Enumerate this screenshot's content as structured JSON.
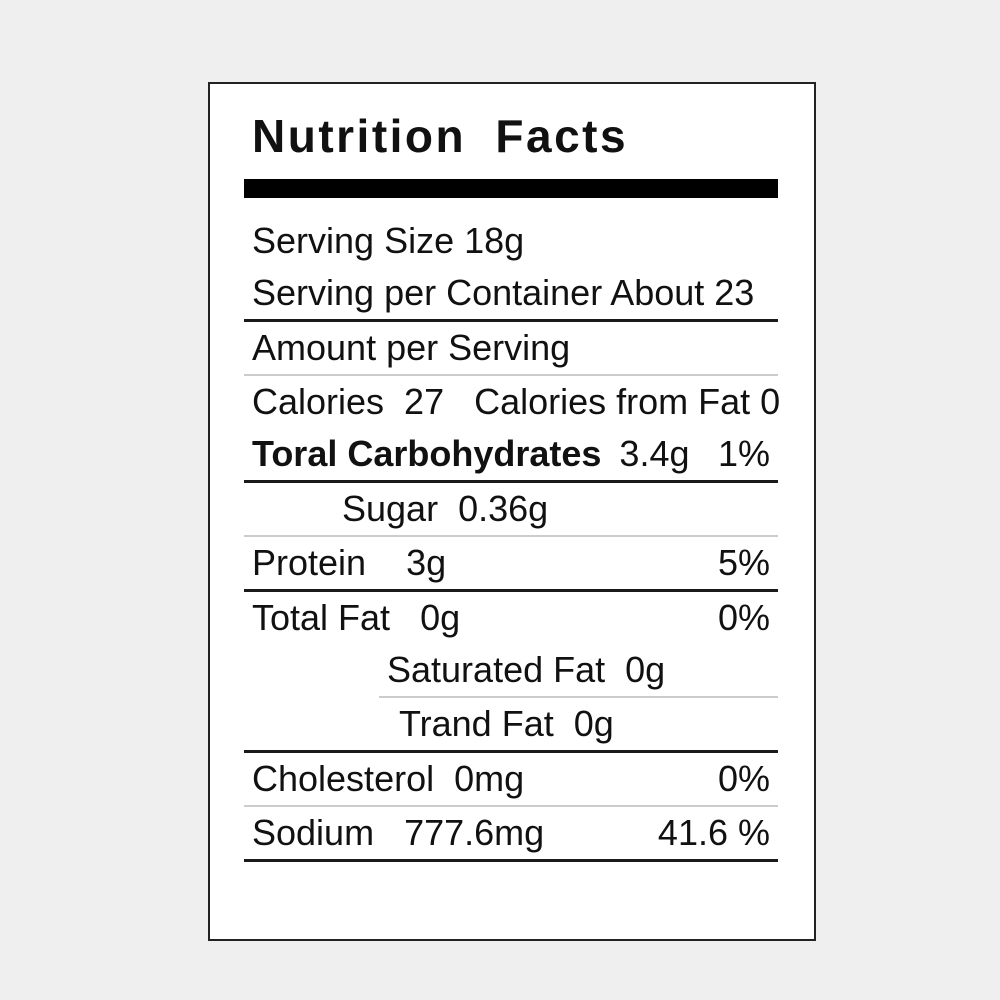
{
  "label": {
    "title": "Nutrition Facts",
    "rows": [
      {
        "name": "serving-size",
        "label": "Serving Size 18g"
      },
      {
        "name": "serving-per-container",
        "label": "Serving per Container About 23"
      },
      {
        "name": "amount-per-serving",
        "label": "Amount per Serving"
      },
      {
        "name": "calories",
        "label": "Calories  27   Calories from Fat 0"
      },
      {
        "name": "total-carbohydrates",
        "label": "Toral Carbohydrates",
        "value": "3.4g",
        "percent": "1%"
      },
      {
        "name": "sugar",
        "label": "Sugar  0.36g"
      },
      {
        "name": "protein",
        "label": "Protein    3g",
        "percent": "5%"
      },
      {
        "name": "total-fat",
        "label": "Total Fat   0g",
        "percent": "0%"
      },
      {
        "name": "saturated-fat",
        "label": "Saturated Fat  0g"
      },
      {
        "name": "trans-fat",
        "label": "Trand Fat  0g"
      },
      {
        "name": "cholesterol",
        "label": "Cholesterol  0mg",
        "percent": "0%"
      },
      {
        "name": "sodium",
        "label": "Sodium   777.6mg",
        "percent": "41.6 %"
      }
    ]
  },
  "colors": {
    "page_background": "#efefef",
    "label_background": "#ffffff",
    "text": "#111111",
    "thick_bar": "#000000",
    "divider_dark": "#1a1a1a",
    "divider_light": "#cccccc"
  }
}
